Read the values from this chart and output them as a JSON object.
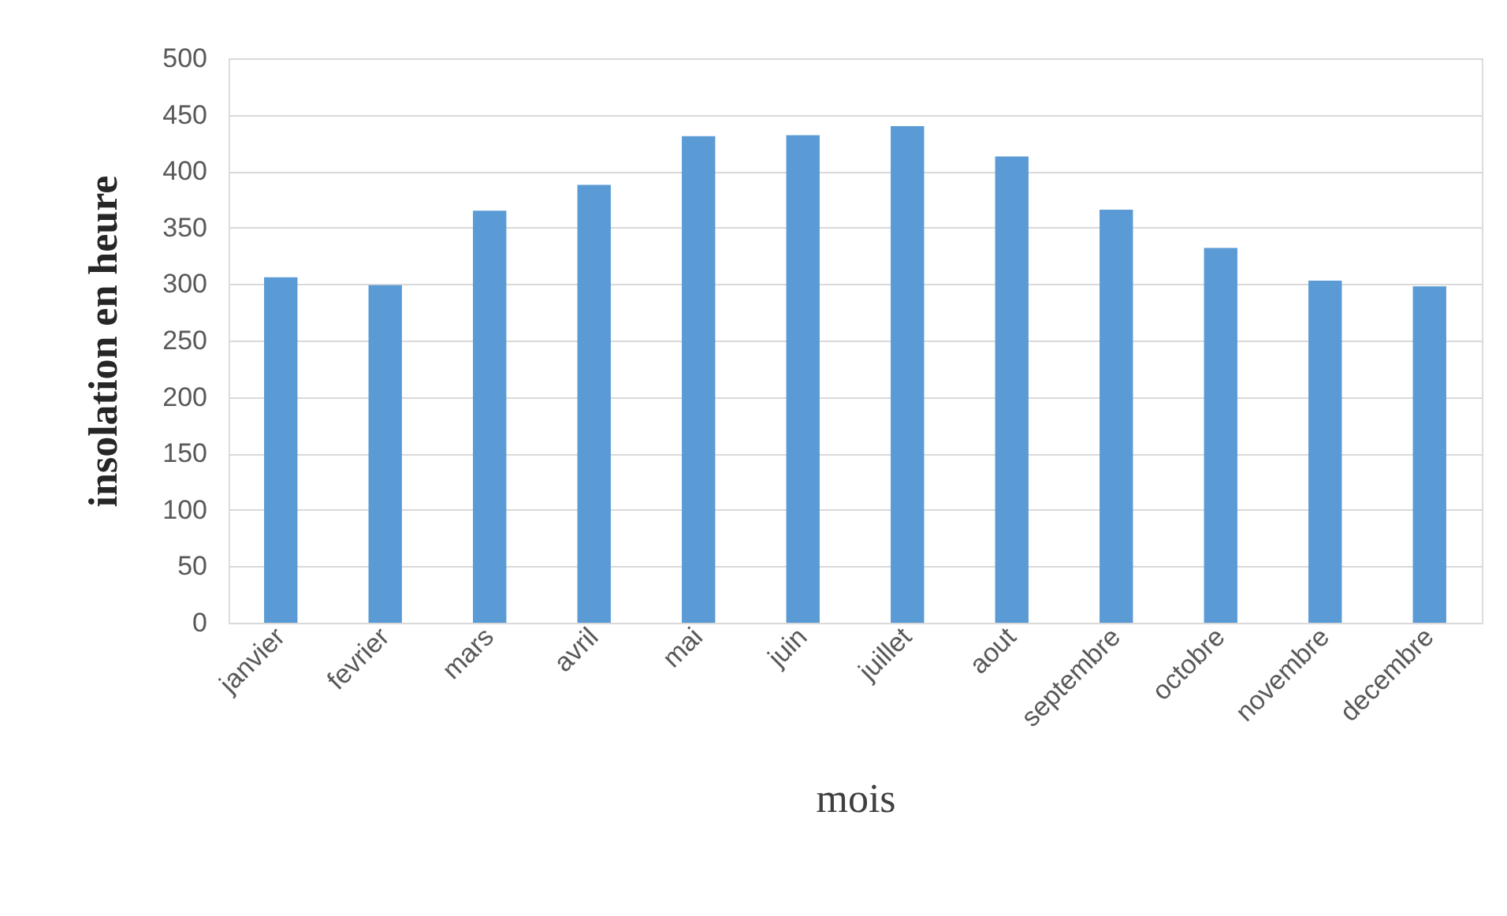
{
  "chart_data": {
    "type": "bar",
    "xlabel": "mois",
    "ylabel": "insolation en heure",
    "categories": [
      "janvier",
      "fevrier",
      "mars",
      "avril",
      "mai",
      "juin",
      "juillet",
      "aout",
      "septembre",
      "octobre",
      "novembre",
      "decembre"
    ],
    "values": [
      306,
      299,
      365,
      388,
      431,
      432,
      440,
      413,
      366,
      332,
      303,
      298
    ],
    "color": "#5b9bd5",
    "ylim": [
      0,
      500
    ],
    "yticks": [
      0,
      50,
      100,
      150,
      200,
      250,
      300,
      350,
      400,
      450,
      500
    ],
    "grid": "y"
  }
}
